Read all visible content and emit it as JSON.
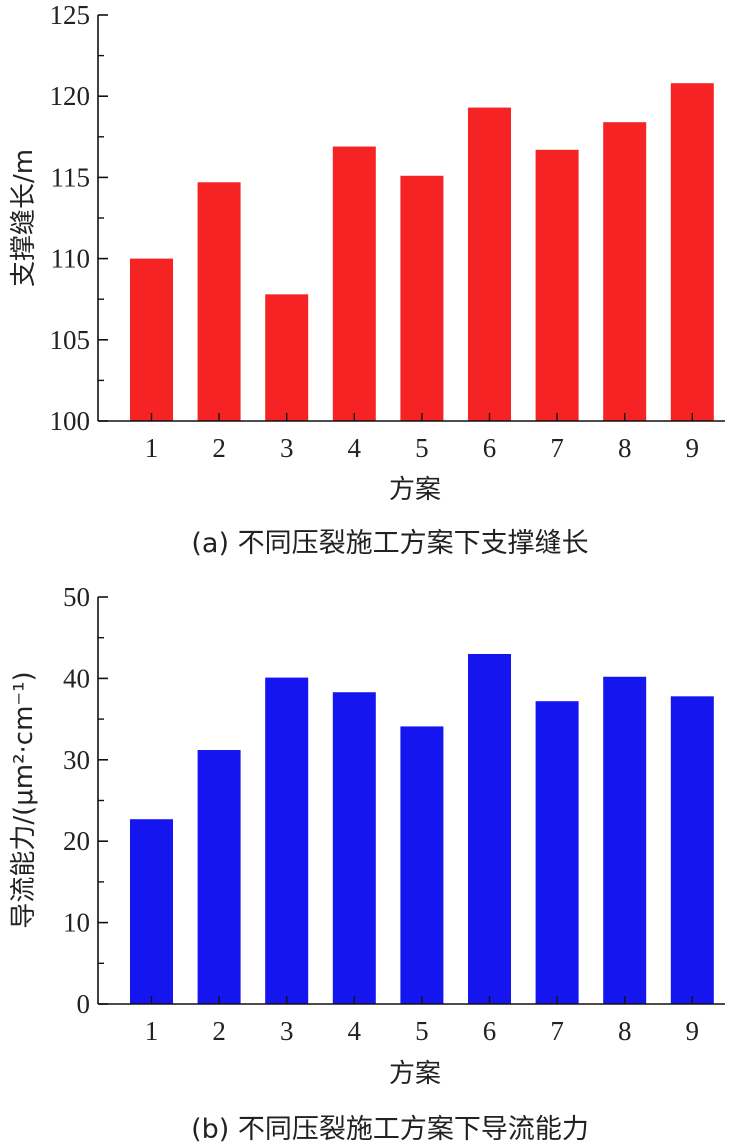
{
  "chart_data": [
    {
      "type": "bar",
      "categories": [
        "1",
        "2",
        "3",
        "4",
        "5",
        "6",
        "7",
        "8",
        "9"
      ],
      "values": [
        110.0,
        114.7,
        107.8,
        116.9,
        115.1,
        119.3,
        116.7,
        118.4,
        120.8
      ],
      "yticks": [
        "100",
        "105",
        "110",
        "115",
        "120",
        "125"
      ],
      "ylim": [
        100,
        125
      ],
      "xlabel": "方案",
      "ylabel": "支撑缝长/m",
      "caption": "(a) 不同压裂施工方案下支撑缝长",
      "bar_color": "#f52323",
      "grid": false
    },
    {
      "type": "bar",
      "categories": [
        "1",
        "2",
        "3",
        "4",
        "5",
        "6",
        "7",
        "8",
        "9"
      ],
      "values": [
        22.7,
        31.2,
        40.1,
        38.3,
        34.1,
        43.0,
        37.2,
        40.2,
        37.8
      ],
      "yticks": [
        "0",
        "10",
        "20",
        "30",
        "40",
        "50"
      ],
      "ylim": [
        0,
        50
      ],
      "xlabel": "方案",
      "ylabel": "导流能力/(μm²·cm⁻¹)",
      "caption": "(b) 不同压裂施工方案下导流能力",
      "bar_color": "#1515f0",
      "grid": false
    }
  ]
}
